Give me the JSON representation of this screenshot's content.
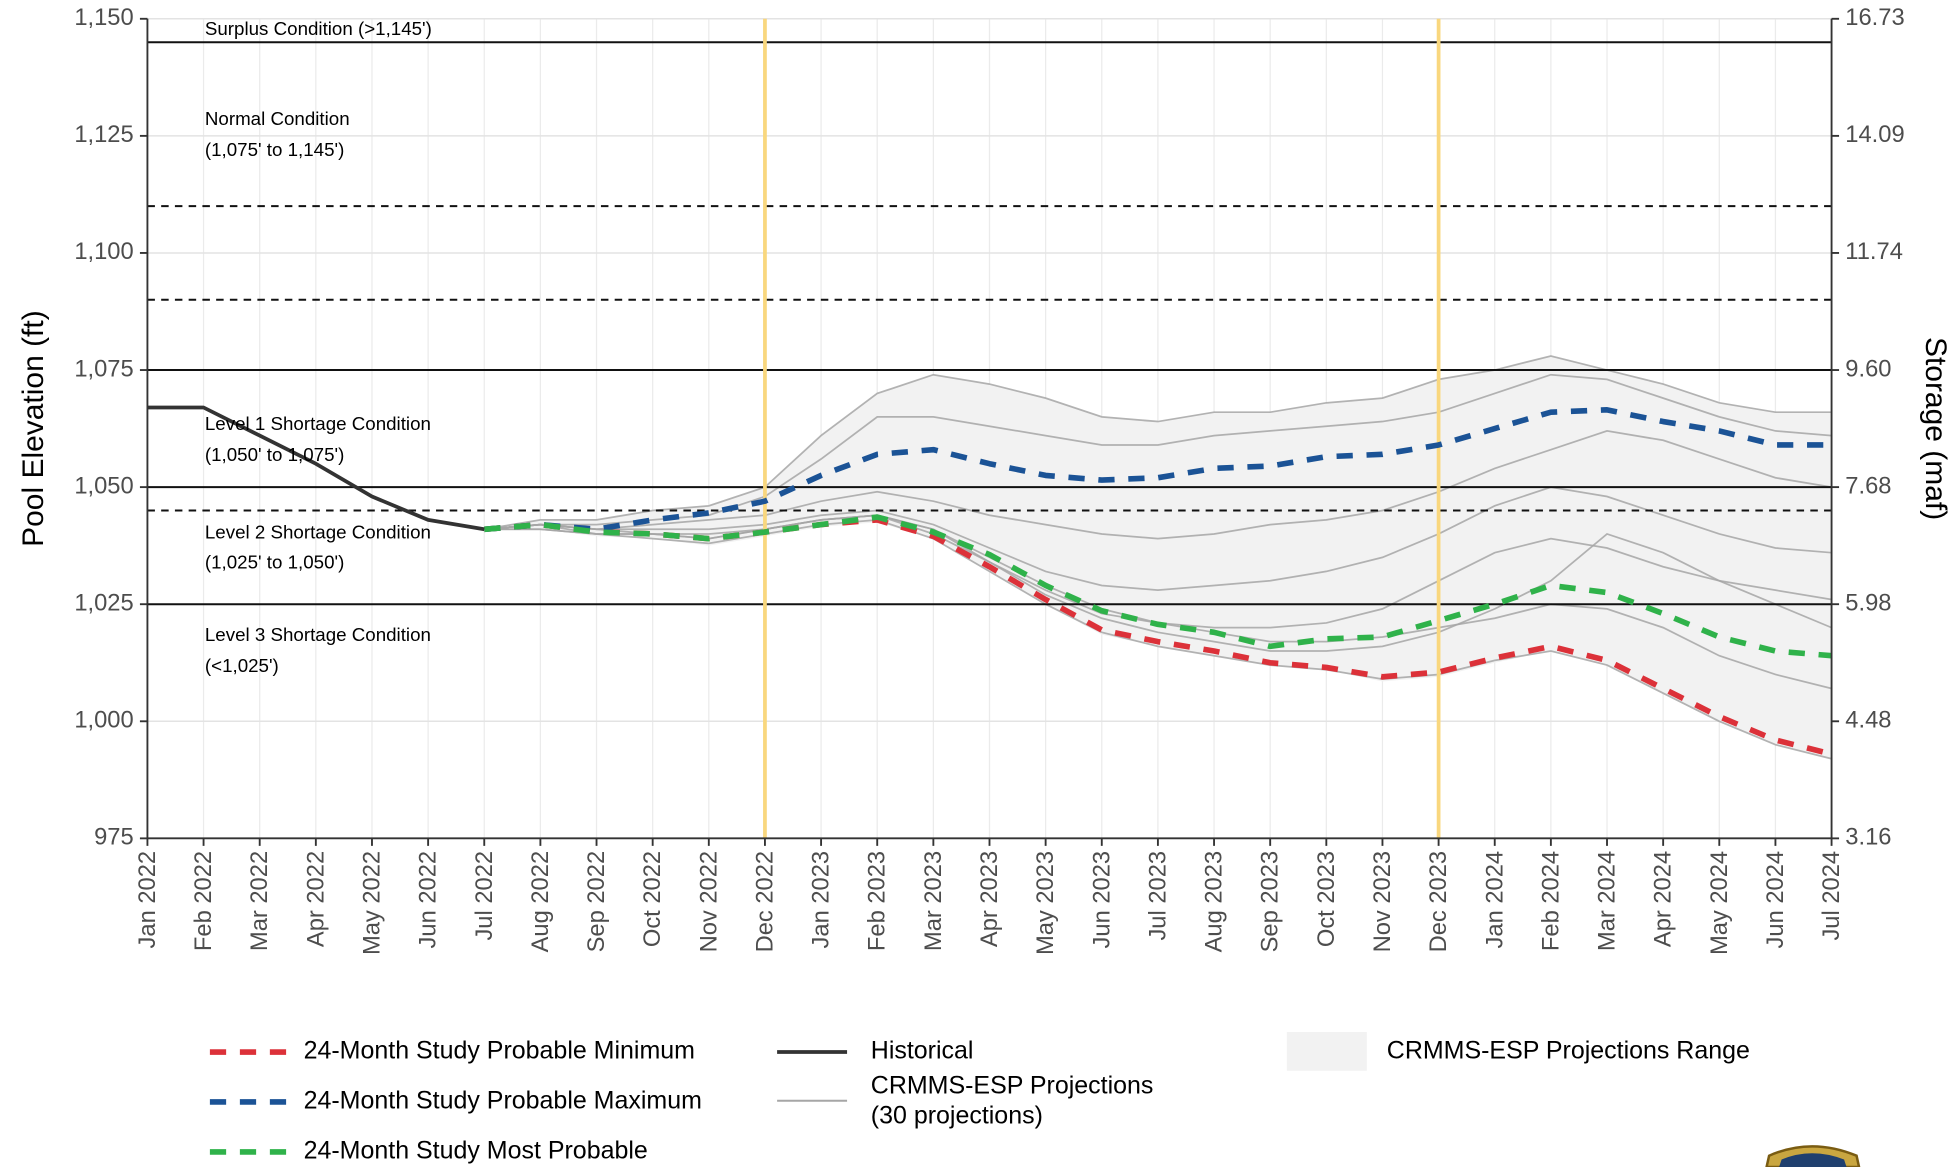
{
  "chart_data": {
    "type": "line",
    "y_label": "Pool Elevation (ft)",
    "y2_label": "Storage (maf)",
    "categories": [
      "Jan 2022",
      "Feb 2022",
      "Mar 2022",
      "Apr 2022",
      "May 2022",
      "Jun 2022",
      "Jul 2022",
      "Aug 2022",
      "Sep 2022",
      "Oct 2022",
      "Nov 2022",
      "Dec 2022",
      "Jan 2023",
      "Feb 2023",
      "Mar 2023",
      "Apr 2023",
      "May 2023",
      "Jun 2023",
      "Jul 2023",
      "Aug 2023",
      "Sep 2023",
      "Oct 2023",
      "Nov 2023",
      "Dec 2023",
      "Jan 2024",
      "Feb 2024",
      "Mar 2024",
      "Apr 2024",
      "May 2024",
      "Jun 2024",
      "Jul 2024"
    ],
    "ylim": [
      975,
      1150
    ],
    "yticks": [
      975,
      {
        "value": 1000,
        "label": "1,000"
      },
      {
        "value": 1025,
        "label": "1,025"
      },
      {
        "value": 1050,
        "label": "1,050"
      },
      {
        "value": 1075,
        "label": "1,075"
      },
      {
        "value": 1100,
        "label": "1,100"
      },
      {
        "value": 1125,
        "label": "1,125"
      },
      {
        "value": 1150,
        "label": "1,150"
      }
    ],
    "y2lim": [
      3.16,
      16.73
    ],
    "y2ticks": [
      3.16,
      4.48,
      5.98,
      7.68,
      {
        "value": 9.6,
        "label": "9.60"
      },
      11.74,
      14.09,
      16.73
    ],
    "grid": true,
    "hlines": [
      {
        "value": 1145,
        "style": "solid"
      },
      {
        "value": 1110,
        "style": "dashed"
      },
      {
        "value": 1090,
        "style": "dashed"
      },
      {
        "value": 1075,
        "style": "solid"
      },
      {
        "value": 1050,
        "style": "solid"
      },
      {
        "value": 1045,
        "style": "dashed"
      },
      {
        "value": 1025,
        "style": "solid"
      }
    ],
    "vlines": {
      "color": "#f9d77e",
      "at": [
        "Dec 2022",
        "Dec 2023"
      ]
    },
    "annotations": [
      "Surplus Condition (>1,145')",
      "Normal Condition",
      "(1,075' to 1,145')",
      "Level 1 Shortage Condition",
      "(1,050' to 1,075')",
      "Level 2 Shortage Condition",
      "(1,025' to 1,050')",
      "Level 3 Shortage Condition",
      "(<1,025')"
    ],
    "range": {
      "name": "CRMMS-ESP Projections Range",
      "color": "#f2f2f2",
      "upper": [
        null,
        null,
        null,
        null,
        null,
        null,
        1041,
        1043,
        1043,
        1045,
        1046,
        1050,
        1061,
        1070,
        1074,
        1072,
        1069,
        1065,
        1064,
        1066,
        1066,
        1068,
        1069,
        1073,
        1075,
        1078,
        1075,
        1072,
        1068,
        1066,
        1066
      ],
      "lower": [
        null,
        null,
        null,
        null,
        null,
        null,
        1041,
        1041,
        1039.5,
        1039,
        1037.5,
        1039.5,
        1041.5,
        1042.5,
        1039,
        1032,
        1025,
        1018.5,
        1016,
        1014,
        1012,
        1011,
        1008.5,
        1009.5,
        1012.5,
        1015,
        1012,
        1006,
        1000,
        995,
        992
      ]
    },
    "projections": {
      "name": "CRMMS-ESP Projections",
      "count_label": "(30 projections)",
      "color": "#a6a6a6",
      "lines": [
        [
          null,
          null,
          null,
          null,
          null,
          null,
          1041,
          1043,
          1043,
          1045,
          1046,
          1050,
          1061,
          1070,
          1074,
          1072,
          1069,
          1065,
          1064,
          1066,
          1066,
          1068,
          1069,
          1073,
          1075,
          1078,
          1075,
          1072,
          1068,
          1066,
          1066
        ],
        [
          null,
          null,
          null,
          null,
          null,
          null,
          1041,
          1042,
          1042,
          1043,
          1044,
          1048,
          1056,
          1065,
          1065,
          1063,
          1061,
          1059,
          1059,
          1061,
          1062,
          1063,
          1064,
          1066,
          1070,
          1074,
          1073,
          1069,
          1065,
          1062,
          1061
        ],
        [
          null,
          null,
          null,
          null,
          null,
          null,
          1041,
          1042,
          1041,
          1042,
          1043,
          1044,
          1047,
          1049,
          1047,
          1044,
          1042,
          1040,
          1039,
          1040,
          1042,
          1043,
          1045,
          1049,
          1054,
          1058,
          1062,
          1060,
          1056,
          1052,
          1050
        ],
        [
          null,
          null,
          null,
          null,
          null,
          null,
          1041,
          1042,
          1041,
          1041,
          1041,
          1042,
          1044,
          1045,
          1042,
          1037,
          1032,
          1029,
          1028,
          1029,
          1030,
          1032,
          1035,
          1040,
          1046,
          1050,
          1048,
          1044,
          1040,
          1037,
          1036
        ],
        [
          null,
          null,
          null,
          null,
          null,
          null,
          1041,
          1041,
          1040,
          1040,
          1039,
          1041,
          1043,
          1044,
          1040,
          1034,
          1028,
          1023,
          1021,
          1020,
          1020,
          1021,
          1024,
          1030,
          1036,
          1039,
          1037,
          1033,
          1030,
          1028,
          1026
        ],
        [
          null,
          null,
          null,
          null,
          null,
          null,
          1041,
          1042,
          1040,
          1040,
          1039,
          1041,
          1043,
          1044,
          1041,
          1035,
          1029,
          1024,
          1021,
          1019,
          1017,
          1017,
          1018,
          1020,
          1022,
          1025,
          1024,
          1020,
          1014,
          1010,
          1007
        ],
        [
          null,
          null,
          null,
          null,
          null,
          null,
          1041,
          1041,
          1040,
          1039,
          1038,
          1040,
          1042,
          1043,
          1039,
          1032,
          1025,
          1019,
          1016,
          1014,
          1012,
          1011,
          1009,
          1010,
          1013,
          1015,
          1012,
          1006,
          1000,
          995,
          992
        ],
        [
          null,
          null,
          null,
          null,
          null,
          null,
          1041,
          1042,
          1041,
          1040,
          1040,
          1041,
          1043,
          1044,
          1041,
          1034,
          1027,
          1022,
          1019,
          1017,
          1015,
          1015,
          1016,
          1019,
          1024,
          1030,
          1040,
          1036,
          1030,
          1025,
          1020
        ]
      ]
    },
    "series": [
      {
        "name": "24-Month Study Probable Minimum",
        "color": "#dc3139",
        "style": "dashed",
        "values": [
          null,
          null,
          null,
          null,
          null,
          null,
          1041,
          1042,
          1040.5,
          1040,
          1039,
          1040.4,
          1042,
          1043,
          1039.5,
          1033,
          1026,
          1019.5,
          1017,
          1015,
          1012.5,
          1011.5,
          1009.5,
          1010.5,
          1013.5,
          1016,
          1013,
          1007,
          1001,
          996,
          993
        ]
      },
      {
        "name": "24-Month Study Probable Maximum",
        "color": "#1b5396",
        "style": "dashed",
        "values": [
          null,
          null,
          null,
          null,
          null,
          null,
          1041,
          1042,
          1041,
          1043,
          1044.5,
          1047,
          1052.5,
          1057,
          1058,
          1055,
          1052.5,
          1051.5,
          1052,
          1054,
          1054.5,
          1056.5,
          1057,
          1059,
          1062.5,
          1066,
          1066.5,
          1064,
          1062,
          1059,
          1059
        ]
      },
      {
        "name": "24-Month Study Most Probable",
        "color": "#2fb24a",
        "style": "dashed",
        "values": [
          null,
          null,
          null,
          null,
          null,
          null,
          1041,
          1042,
          1040.4,
          1040,
          1039,
          1040.4,
          1042,
          1043.6,
          1040.4,
          1035.6,
          1029,
          1023.6,
          1020.7,
          1019,
          1016,
          1017.6,
          1018,
          1021.5,
          1025,
          1029,
          1027.5,
          1023,
          1018,
          1015,
          1014
        ]
      },
      {
        "name": "Historical",
        "color": "#333333",
        "style": "solid",
        "values": [
          1067,
          1067,
          1061,
          1055,
          1048,
          1043,
          1041,
          null,
          null,
          null,
          null,
          null,
          null,
          null,
          null,
          null,
          null,
          null,
          null,
          null,
          null,
          null,
          null,
          null,
          null,
          null,
          null,
          null,
          null,
          null,
          null
        ]
      }
    ]
  }
}
